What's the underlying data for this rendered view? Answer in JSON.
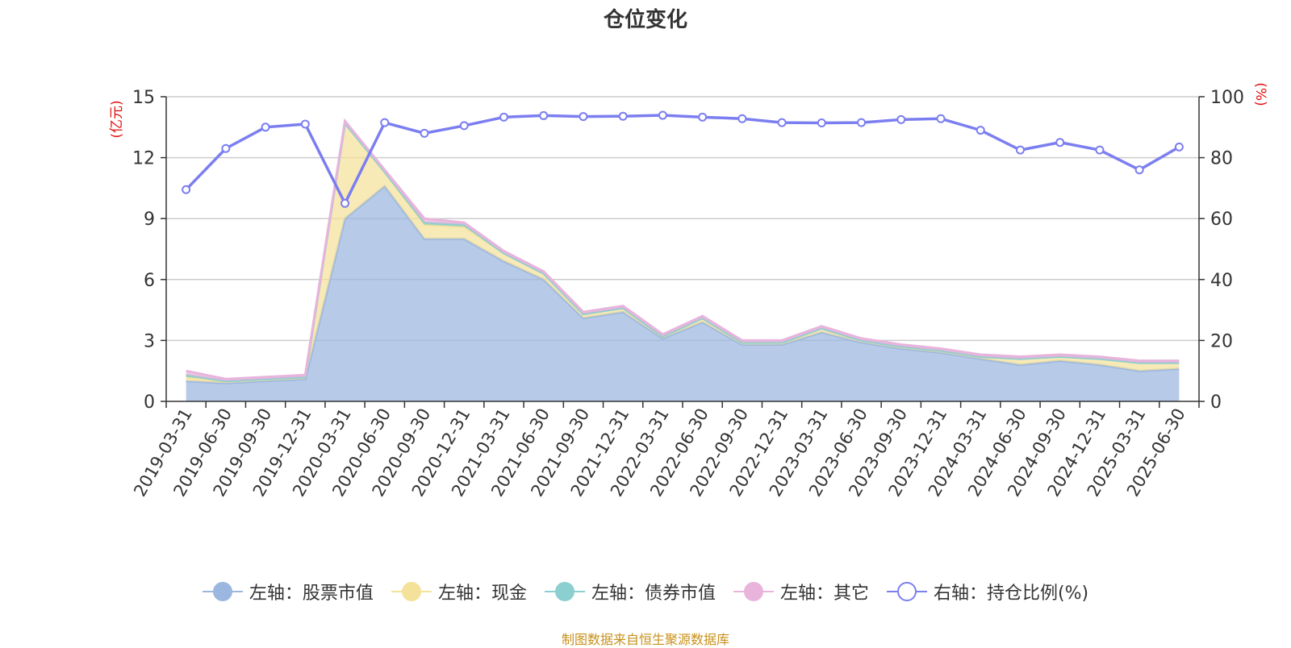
{
  "chart_data": {
    "type": "area",
    "title": "仓位变化",
    "left_axis": {
      "label": "(亿元)",
      "min": 0,
      "max": 15,
      "ticks": [
        0,
        3,
        6,
        9,
        12,
        15
      ]
    },
    "right_axis": {
      "label": "(%)",
      "min": 0,
      "max": 100,
      "ticks": [
        0,
        20,
        40,
        60,
        80,
        100
      ]
    },
    "categories": [
      "2019-03-31",
      "2019-06-30",
      "2019-09-30",
      "2019-12-31",
      "2020-03-31",
      "2020-06-30",
      "2020-09-30",
      "2020-12-31",
      "2021-03-31",
      "2021-06-30",
      "2021-09-30",
      "2021-12-31",
      "2022-03-31",
      "2022-06-30",
      "2022-09-30",
      "2022-12-31",
      "2023-03-31",
      "2023-06-30",
      "2023-09-30",
      "2023-12-31",
      "2024-03-31",
      "2024-06-30",
      "2024-09-30",
      "2024-12-31",
      "2025-03-31",
      "2025-06-30"
    ],
    "series": [
      {
        "name": "左轴：股票市值",
        "axis": "left",
        "stacked": true,
        "color": "#9bb7e0",
        "values": [
          1.0,
          0.9,
          1.0,
          1.1,
          9.0,
          10.6,
          8.0,
          8.0,
          6.9,
          6.0,
          4.1,
          4.4,
          3.1,
          3.9,
          2.8,
          2.8,
          3.4,
          2.9,
          2.6,
          2.4,
          2.1,
          1.8,
          2.0,
          1.8,
          1.5,
          1.6
        ]
      },
      {
        "name": "左轴：现金",
        "axis": "left",
        "stacked": true,
        "color": "#f5e29a",
        "values": [
          0.2,
          0.1,
          0.1,
          0.1,
          4.7,
          0.7,
          0.7,
          0.6,
          0.4,
          0.3,
          0.2,
          0.2,
          0.1,
          0.2,
          0.1,
          0.1,
          0.2,
          0.1,
          0.1,
          0.1,
          0.1,
          0.3,
          0.2,
          0.3,
          0.4,
          0.3
        ]
      },
      {
        "name": "左轴：债券市值",
        "axis": "left",
        "stacked": true,
        "color": "#8ccfd0",
        "values": [
          0.1,
          0,
          0,
          0,
          0,
          0,
          0.1,
          0.1,
          0,
          0,
          0,
          0,
          0,
          0,
          0,
          0,
          0,
          0,
          0,
          0,
          0,
          0,
          0,
          0,
          0,
          0
        ]
      },
      {
        "name": "左轴：其它",
        "axis": "left",
        "stacked": true,
        "color": "#e8b4dc",
        "values": [
          0.2,
          0.1,
          0.1,
          0.1,
          0.1,
          0.1,
          0.2,
          0.1,
          0.1,
          0.1,
          0.1,
          0.1,
          0.1,
          0.1,
          0.1,
          0.1,
          0.1,
          0.1,
          0.1,
          0.1,
          0.1,
          0.1,
          0.1,
          0.1,
          0.1,
          0.1
        ]
      },
      {
        "name": "右轴：持仓比例(%)",
        "axis": "right",
        "stacked": false,
        "color": "#7b7ef0",
        "values": [
          69.5,
          83,
          90,
          91,
          65,
          91.5,
          88,
          90.5,
          93.3,
          93.8,
          93.5,
          93.6,
          93.9,
          93.3,
          92.8,
          91.5,
          91.4,
          91.5,
          92.5,
          92.8,
          89,
          82.5,
          85,
          82.5,
          76,
          83.5
        ]
      }
    ],
    "legend_position": "bottom",
    "grid": true
  },
  "footer": {
    "source": "制图数据来自恒生聚源数据库"
  }
}
